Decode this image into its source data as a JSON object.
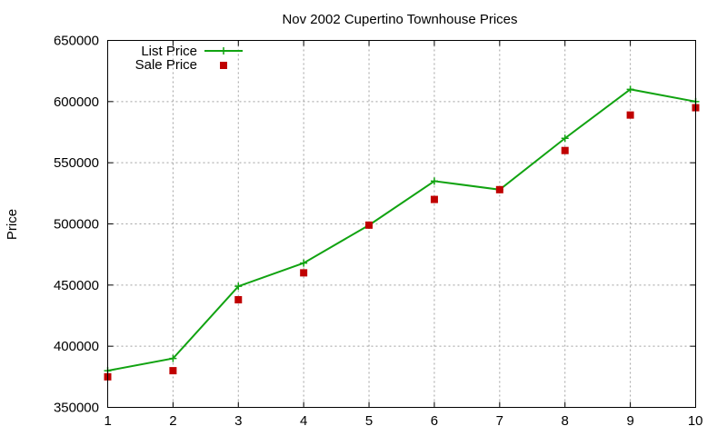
{
  "chart_data": {
    "type": "line",
    "title": "Nov 2002 Cupertino Townhouse Prices",
    "xlabel": "",
    "ylabel": "Price",
    "xlim": [
      1,
      10
    ],
    "ylim": [
      350000,
      650000
    ],
    "xticks": [
      1,
      2,
      3,
      4,
      5,
      6,
      7,
      8,
      9,
      10
    ],
    "yticks": [
      350000,
      400000,
      450000,
      500000,
      550000,
      600000,
      650000
    ],
    "grid": true,
    "legend_position": "top-left",
    "series": [
      {
        "name": "List Price",
        "style": "line+cross",
        "color": "#11a311",
        "x": [
          1,
          2,
          3,
          4,
          5,
          6,
          7,
          8,
          9,
          10
        ],
        "values": [
          380000,
          390000,
          449000,
          468000,
          499000,
          535000,
          528000,
          570000,
          610000,
          600000
        ]
      },
      {
        "name": "Sale Price",
        "style": "square-points",
        "color": "#c00000",
        "x": [
          1,
          2,
          3,
          4,
          5,
          6,
          7,
          8,
          9,
          10
        ],
        "values": [
          375000,
          380000,
          438000,
          460000,
          499000,
          520000,
          528000,
          560000,
          589000,
          595000
        ]
      }
    ]
  }
}
